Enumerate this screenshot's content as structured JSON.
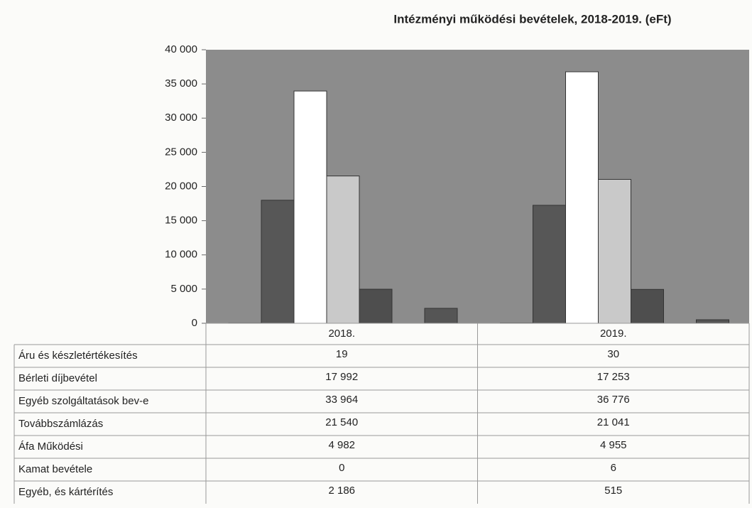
{
  "chart_data": {
    "type": "bar",
    "title": "Intézményi működési bevételek, 2018-2019. (eFt)",
    "categories": [
      "2018.",
      "2019."
    ],
    "ylim": [
      0,
      40000
    ],
    "yticks": [
      {
        "value": 0,
        "label": "0"
      },
      {
        "value": 5000,
        "label": "5 000"
      },
      {
        "value": 10000,
        "label": "10 000"
      },
      {
        "value": 15000,
        "label": "15 000"
      },
      {
        "value": 20000,
        "label": "20 000"
      },
      {
        "value": 25000,
        "label": "25 000"
      },
      {
        "value": 30000,
        "label": "30 000"
      },
      {
        "value": 35000,
        "label": "35 000"
      },
      {
        "value": 40000,
        "label": "40 000"
      }
    ],
    "series": [
      {
        "name": "Áru és készletértékesítés",
        "color": "#6a6a6a",
        "values": [
          19,
          30
        ],
        "value_labels": [
          "19",
          "30"
        ]
      },
      {
        "name": "Bérleti díjbevétel",
        "color": "#575757",
        "values": [
          17992,
          17253
        ],
        "value_labels": [
          "17 992",
          "17 253"
        ]
      },
      {
        "name": "Egyéb szolgáltatások bev-e",
        "color": "#ffffff",
        "values": [
          33964,
          36776
        ],
        "value_labels": [
          "33 964",
          "36 776"
        ]
      },
      {
        "name": "Továbbszámlázás",
        "color": "#c9c9c9",
        "values": [
          21540,
          21041
        ],
        "value_labels": [
          "21 540",
          "21 041"
        ]
      },
      {
        "name": "Áfa Működési",
        "color": "#4e4e4e",
        "values": [
          4982,
          4955
        ],
        "value_labels": [
          "4 982",
          "4 955"
        ]
      },
      {
        "name": "Kamat bevétele",
        "color": "#777777",
        "values": [
          0,
          6
        ],
        "value_labels": [
          "0",
          "6"
        ]
      },
      {
        "name": "Egyéb, és kártérítés",
        "color": "#555555",
        "values": [
          2186,
          515
        ],
        "value_labels": [
          "2 186",
          "515"
        ]
      }
    ]
  }
}
